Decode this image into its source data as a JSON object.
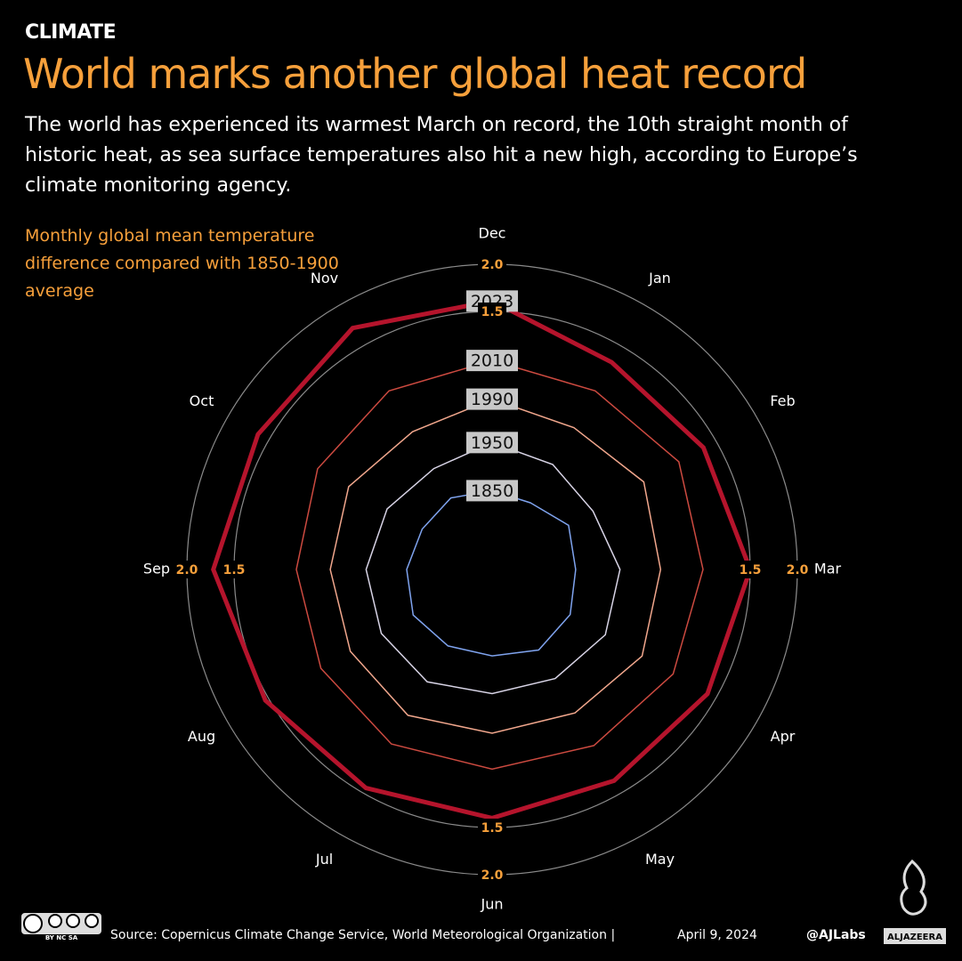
{
  "header": {
    "kicker": "CLIMATE"
  },
  "chart_data": {
    "type": "radar",
    "title": "World marks another global heat record",
    "subtitle": "The world has  experienced its warmest March on record, the 10th straight month of historic heat, as sea surface temperatures also hit a new high, according to Europe’s climate monitoring agency.",
    "axis_label": "Monthly global mean temperature difference  compared with 1850-1900 average",
    "categories": [
      "Jan",
      "Feb",
      "Mar",
      "Apr",
      "May",
      "Jun",
      "Jul",
      "Aug",
      "Sep",
      "Oct",
      "Nov",
      "Dec"
    ],
    "rlim": [
      -1,
      2
    ],
    "rticks": [
      1.5,
      {
        "value": 2,
        "label": "2.0"
      }
    ],
    "series": [
      {
        "name": "1850",
        "color": "#7fa3ee",
        "width": 1.5,
        "values": [
          -0.42,
          -0.3,
          -0.35,
          -0.28,
          -0.25,
          -0.32,
          -0.3,
          -0.27,
          -0.33,
          -0.38,
          -0.36,
          -0.4
        ]
      },
      {
        "name": "1950",
        "color": "#d8d4e6",
        "width": 1.5,
        "values": [
          0.05,
          0.0,
          0.12,
          0.15,
          0.1,
          0.08,
          0.14,
          0.12,
          0.1,
          0.05,
          0.0,
          0.11
        ]
      },
      {
        "name": "1990",
        "color": "#f0a68c",
        "width": 1.5,
        "values": [
          0.5,
          0.62,
          0.55,
          0.6,
          0.52,
          0.5,
          0.55,
          0.5,
          0.48,
          0.52,
          0.45,
          0.57
        ]
      },
      {
        "name": "2010",
        "color": "#cc4a40",
        "width": 1.5,
        "values": [
          0.95,
          1.05,
          1.0,
          0.98,
          0.92,
          0.88,
          0.9,
          0.86,
          0.84,
          0.9,
          0.95,
          0.98
        ]
      },
      {
        "name": "2023",
        "color": "#b5142c",
        "width": 5,
        "values": [
          1.3,
          1.35,
          1.5,
          1.4,
          1.35,
          1.4,
          1.44,
          1.54,
          1.72,
          1.63,
          1.72,
          1.61
        ]
      }
    ]
  },
  "footer": {
    "license": "BY   NC   SA",
    "source": "Source: Copernicus Climate Change Service, World Meteorological Organization   |",
    "date": "April 9, 2024",
    "handle": "@AJLabs",
    "logo": "ALJAZEERA"
  }
}
